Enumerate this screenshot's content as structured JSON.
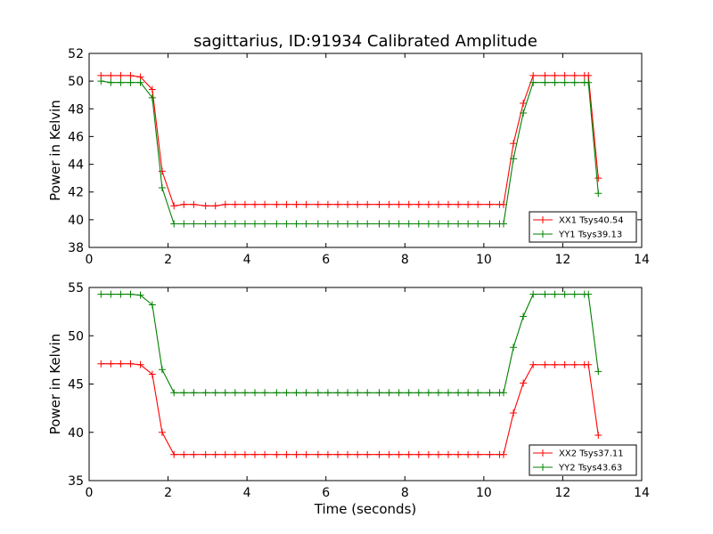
{
  "title": "sagittarius, ID:91934 Calibrated Amplitude",
  "xlabel": "Time (seconds)",
  "ylabel": "Power in Kelvin",
  "colors": {
    "red": "#ff0000",
    "green": "#008000"
  },
  "chart_data": [
    {
      "type": "line",
      "title": "sagittarius, ID:91934 Calibrated Amplitude",
      "xlabel": "",
      "ylabel": "Power in Kelvin",
      "xlim": [
        0,
        14
      ],
      "ylim": [
        38,
        52
      ],
      "xticks": [
        0,
        2,
        4,
        6,
        8,
        10,
        12,
        14
      ],
      "yticks": [
        38,
        40,
        42,
        44,
        46,
        48,
        50,
        52
      ],
      "legend_placement": "lower-right",
      "x": [
        0.3,
        0.55,
        0.8,
        1.05,
        1.3,
        1.6,
        1.85,
        2.15,
        2.4,
        2.65,
        2.95,
        3.2,
        3.45,
        3.7,
        3.95,
        4.2,
        4.45,
        4.75,
        5.0,
        5.25,
        5.5,
        5.8,
        6.05,
        6.3,
        6.55,
        6.8,
        7.05,
        7.35,
        7.6,
        7.85,
        8.1,
        8.35,
        8.6,
        8.85,
        9.1,
        9.35,
        9.6,
        9.85,
        10.15,
        10.4,
        10.5,
        10.75,
        11.0,
        11.25,
        11.55,
        11.8,
        12.05,
        12.3,
        12.55,
        12.65,
        12.9
      ],
      "series": [
        {
          "name": "XX1 Tsys40.54",
          "color": "#ff0000",
          "values": [
            50.4,
            50.4,
            50.4,
            50.4,
            50.3,
            49.4,
            43.5,
            41.0,
            41.1,
            41.1,
            41.0,
            41.0,
            41.1,
            41.1,
            41.1,
            41.1,
            41.1,
            41.1,
            41.1,
            41.1,
            41.1,
            41.1,
            41.1,
            41.1,
            41.1,
            41.1,
            41.1,
            41.1,
            41.1,
            41.1,
            41.1,
            41.1,
            41.1,
            41.1,
            41.1,
            41.1,
            41.1,
            41.1,
            41.1,
            41.1,
            41.1,
            45.5,
            48.4,
            50.4,
            50.4,
            50.4,
            50.4,
            50.4,
            50.4,
            50.4,
            43.0
          ]
        },
        {
          "name": "YY1 Tsys39.13",
          "color": "#008000",
          "values": [
            50.0,
            49.9,
            49.9,
            49.9,
            49.9,
            48.8,
            42.3,
            39.7,
            39.7,
            39.7,
            39.7,
            39.7,
            39.7,
            39.7,
            39.7,
            39.7,
            39.7,
            39.7,
            39.7,
            39.7,
            39.7,
            39.7,
            39.7,
            39.7,
            39.7,
            39.7,
            39.7,
            39.7,
            39.7,
            39.7,
            39.7,
            39.7,
            39.7,
            39.7,
            39.7,
            39.7,
            39.7,
            39.7,
            39.7,
            39.7,
            39.7,
            44.4,
            47.7,
            49.9,
            49.9,
            49.9,
            49.9,
            49.9,
            49.9,
            49.9,
            41.9
          ]
        }
      ]
    },
    {
      "type": "line",
      "title": "",
      "xlabel": "Time (seconds)",
      "ylabel": "Power in Kelvin",
      "xlim": [
        0,
        14
      ],
      "ylim": [
        35,
        55
      ],
      "xticks": [
        0,
        2,
        4,
        6,
        8,
        10,
        12,
        14
      ],
      "yticks": [
        35,
        40,
        45,
        50,
        55
      ],
      "legend_placement": "lower-right",
      "x": [
        0.3,
        0.55,
        0.8,
        1.05,
        1.3,
        1.6,
        1.85,
        2.15,
        2.4,
        2.65,
        2.95,
        3.2,
        3.45,
        3.7,
        3.95,
        4.2,
        4.45,
        4.75,
        5.0,
        5.25,
        5.5,
        5.8,
        6.05,
        6.3,
        6.55,
        6.8,
        7.05,
        7.35,
        7.6,
        7.85,
        8.1,
        8.35,
        8.6,
        8.85,
        9.1,
        9.35,
        9.6,
        9.85,
        10.15,
        10.4,
        10.5,
        10.75,
        11.0,
        11.25,
        11.55,
        11.8,
        12.05,
        12.3,
        12.55,
        12.65,
        12.9
      ],
      "series": [
        {
          "name": "XX2 Tsys37.11",
          "color": "#ff0000",
          "values": [
            47.1,
            47.1,
            47.1,
            47.1,
            47.0,
            46.0,
            40.0,
            37.7,
            37.7,
            37.7,
            37.7,
            37.7,
            37.7,
            37.7,
            37.7,
            37.7,
            37.7,
            37.7,
            37.7,
            37.7,
            37.7,
            37.7,
            37.7,
            37.7,
            37.7,
            37.7,
            37.7,
            37.7,
            37.7,
            37.7,
            37.7,
            37.7,
            37.7,
            37.7,
            37.7,
            37.7,
            37.7,
            37.7,
            37.7,
            37.7,
            37.7,
            42.0,
            45.1,
            47.0,
            47.0,
            47.0,
            47.0,
            47.0,
            47.0,
            47.0,
            39.7
          ]
        },
        {
          "name": "YY2 Tsys43.63",
          "color": "#008000",
          "values": [
            54.3,
            54.3,
            54.3,
            54.3,
            54.2,
            53.2,
            46.5,
            44.1,
            44.1,
            44.1,
            44.1,
            44.1,
            44.1,
            44.1,
            44.1,
            44.1,
            44.1,
            44.1,
            44.1,
            44.1,
            44.1,
            44.1,
            44.1,
            44.1,
            44.1,
            44.1,
            44.1,
            44.1,
            44.1,
            44.1,
            44.1,
            44.1,
            44.1,
            44.1,
            44.1,
            44.1,
            44.1,
            44.1,
            44.1,
            44.1,
            44.1,
            48.8,
            52.0,
            54.3,
            54.3,
            54.3,
            54.3,
            54.3,
            54.3,
            54.3,
            46.3
          ]
        }
      ]
    }
  ]
}
